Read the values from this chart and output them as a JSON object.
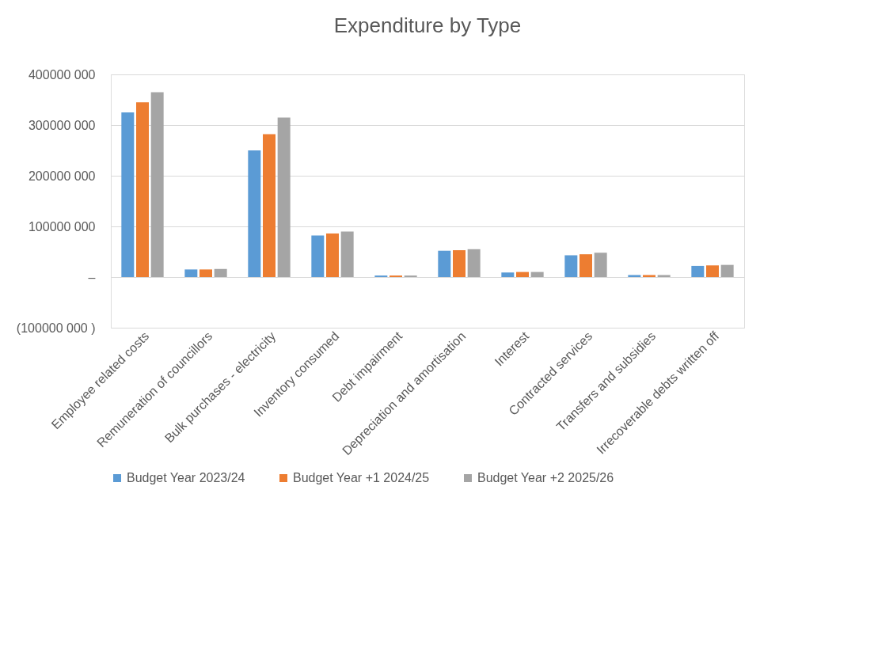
{
  "chart_data": {
    "type": "bar",
    "title": "Expenditure by Type",
    "categories": [
      "Employee related costs",
      "Remuneration of councillors",
      "Bulk purchases - electricity",
      "Inventory consumed",
      "Debt impairment",
      "Depreciation and amortisation",
      "Interest",
      "Contracted services",
      "Transfers and subsidies",
      "Irrecoverable debts written off"
    ],
    "series": [
      {
        "name": "Budget Year 2023/24",
        "color": "#5b9bd5",
        "values": [
          325000000,
          15000000,
          250000000,
          82000000,
          3000000,
          52000000,
          9000000,
          43000000,
          4000000,
          22000000
        ]
      },
      {
        "name": "Budget Year +1 2024/25",
        "color": "#ed7d31",
        "values": [
          345000000,
          15000000,
          282000000,
          86000000,
          3000000,
          53000000,
          10000000,
          45000000,
          4000000,
          23000000
        ]
      },
      {
        "name": "Budget Year +2 2025/26",
        "color": "#a5a5a5",
        "values": [
          365000000,
          16000000,
          315000000,
          90000000,
          3000000,
          55000000,
          10000000,
          48000000,
          4000000,
          24000000
        ]
      }
    ],
    "ylim": [
      -100000000,
      400000000
    ],
    "yticks": [
      {
        "value": -100000000,
        "label": "(100000 000 )"
      },
      {
        "value": 0,
        "label": "–"
      },
      {
        "value": 100000000,
        "label": "100000 000"
      },
      {
        "value": 200000000,
        "label": "200000 000"
      },
      {
        "value": 300000000,
        "label": "300000 000"
      },
      {
        "value": 400000000,
        "label": "400000 000"
      }
    ],
    "grid": "y",
    "legend": "bottom"
  }
}
